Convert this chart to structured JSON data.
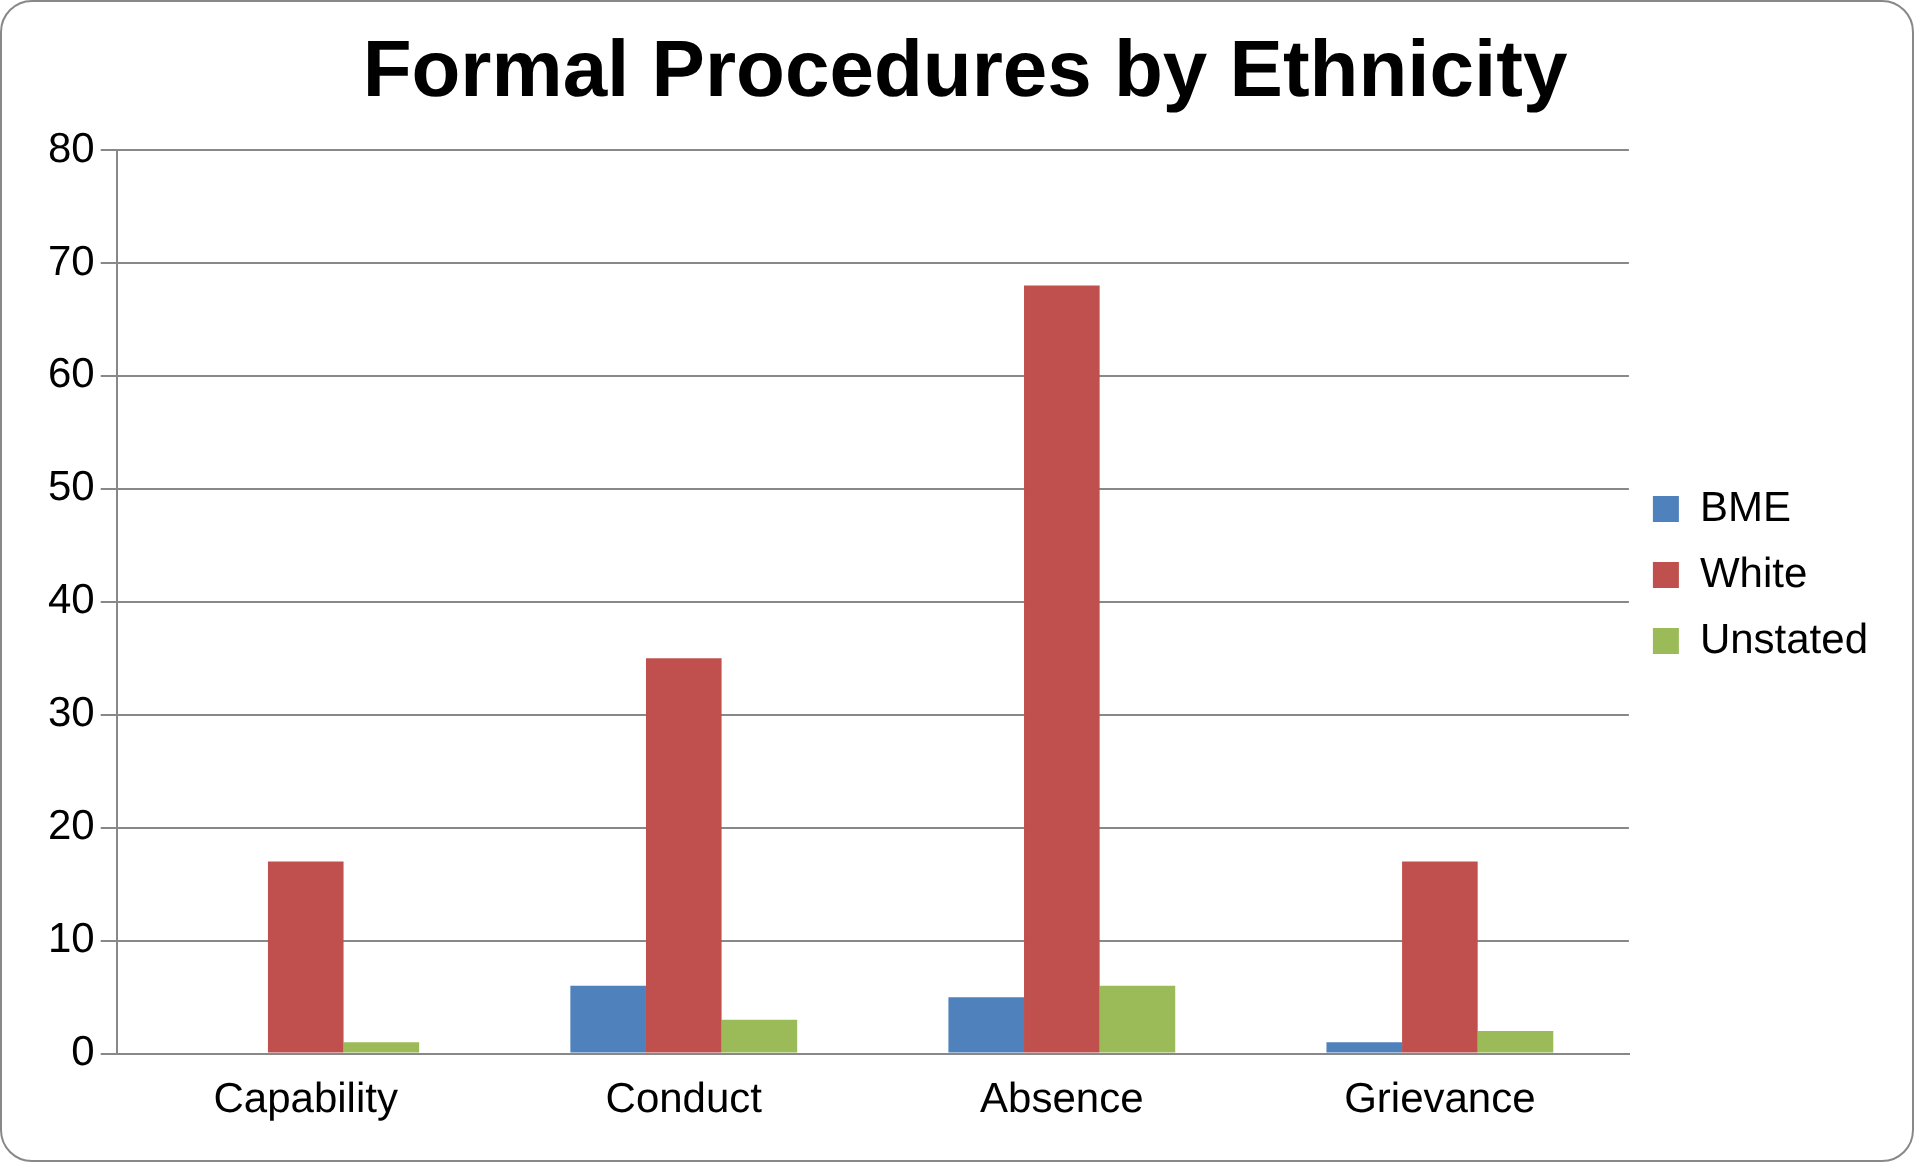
{
  "chart_data": {
    "type": "bar",
    "title": "Formal Procedures by Ethnicity",
    "categories": [
      "Capability",
      "Conduct",
      "Absence",
      "Grievance"
    ],
    "series": [
      {
        "name": "BME",
        "color": "#4f81bd",
        "values": [
          0,
          6,
          5,
          1
        ]
      },
      {
        "name": "White",
        "color": "#c0504d",
        "values": [
          17,
          35,
          68,
          17
        ]
      },
      {
        "name": "Unstated",
        "color": "#9bbb59",
        "values": [
          1,
          3,
          6,
          2
        ]
      }
    ],
    "ylim": [
      0,
      80
    ],
    "yticks": [
      0,
      10,
      20,
      30,
      40,
      50,
      60,
      70,
      80
    ],
    "grid": "y",
    "legend": "right"
  }
}
